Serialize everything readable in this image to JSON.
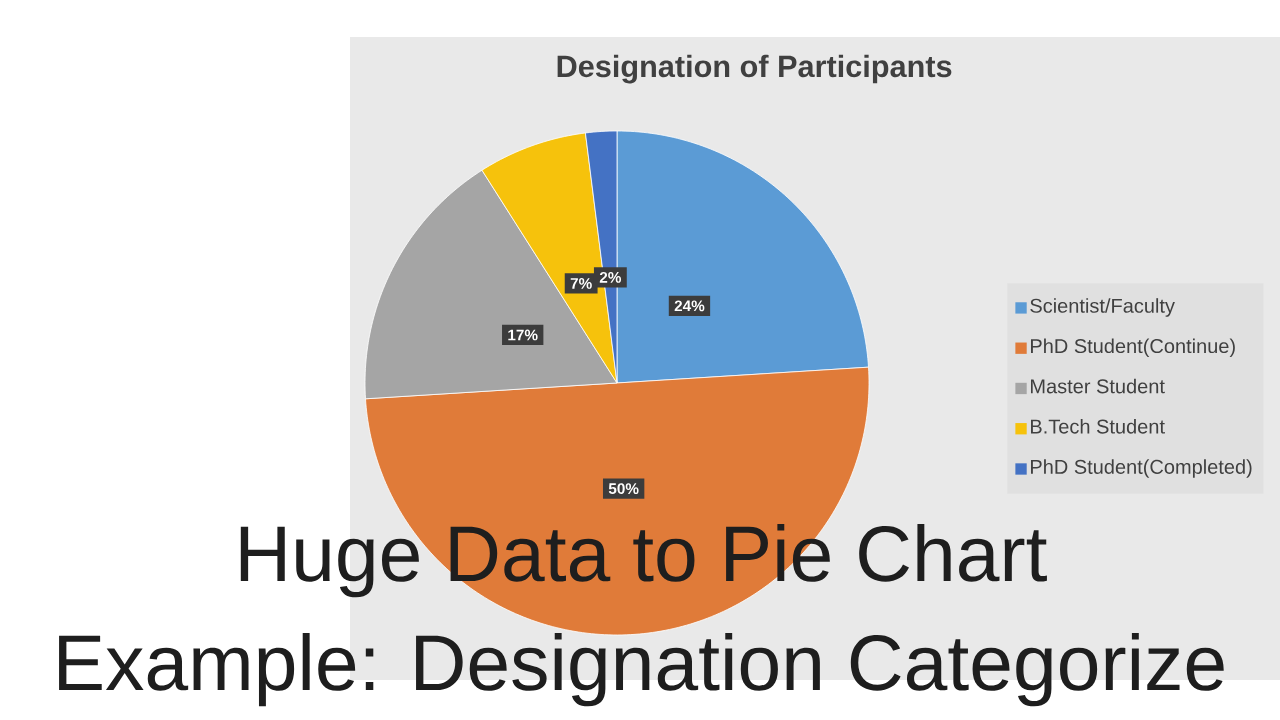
{
  "chart_data": {
    "type": "pie",
    "title": "Designation of Participants",
    "categories": [
      "Scientist/Faculty",
      "PhD Student(Continue)",
      "Master Student",
      "B.Tech Student",
      "PhD Student(Completed)"
    ],
    "values": [
      24,
      50,
      17,
      7,
      2
    ],
    "colors": [
      "#5b9bd5",
      "#e07b39",
      "#a5a5a5",
      "#f6c20c",
      "#4472c4"
    ],
    "value_labels": [
      "24%",
      "50%",
      "17%",
      "7%",
      "2%"
    ],
    "legend": "right",
    "annotations": [
      "Huge Data to Pie Chart",
      "Example: Designation Categorize"
    ]
  }
}
